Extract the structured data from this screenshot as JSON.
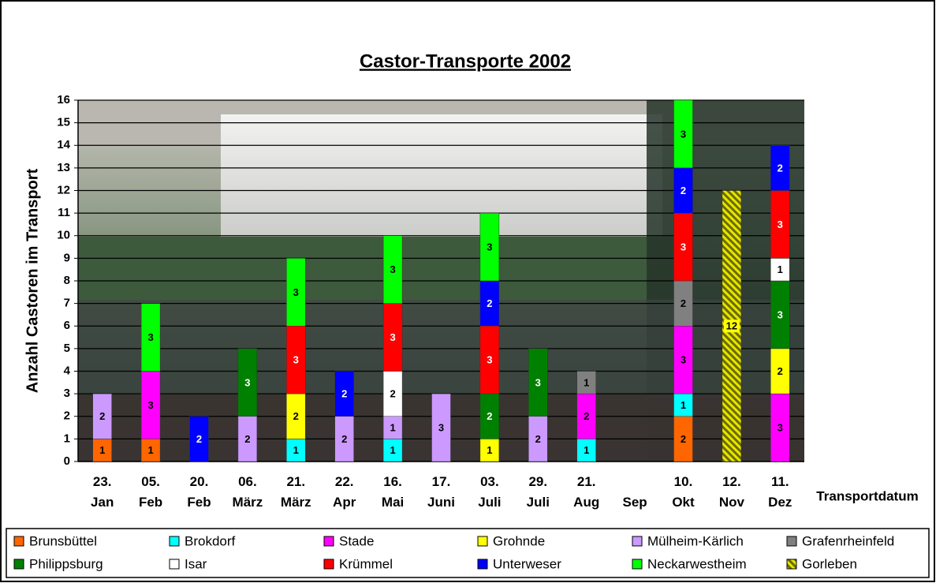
{
  "chart_data": {
    "type": "stacked_bar",
    "title": "Castor-Transporte 2002",
    "y_label": "Anzahl Castoren im Transport",
    "x_label": "Transportdatum",
    "categories": [
      "23. Jan",
      "05. Feb",
      "20. Feb",
      "06. März",
      "21. März",
      "22. Apr",
      "16. Mai",
      "17. Juni",
      "03. Juli",
      "29. Juli",
      "21. Aug",
      "Sep",
      "10. Okt",
      "12. Nov",
      "11. Dez"
    ],
    "ylim": [
      0,
      16
    ],
    "yticks": [
      0,
      1,
      2,
      3,
      4,
      5,
      6,
      7,
      8,
      9,
      10,
      11,
      12,
      13,
      14,
      15,
      16
    ],
    "grid": true,
    "legend": "bottom",
    "series": [
      {
        "name": "Brunsbüttel",
        "color": "#ff6600",
        "values": [
          1,
          1,
          null,
          null,
          null,
          null,
          null,
          null,
          null,
          null,
          null,
          null,
          2,
          null,
          null
        ]
      },
      {
        "name": "Brokdorf",
        "color": "#00ffff",
        "values": [
          null,
          null,
          null,
          null,
          1,
          null,
          1,
          null,
          null,
          null,
          1,
          null,
          1,
          null,
          null
        ]
      },
      {
        "name": "Stade",
        "color": "#ff00ff",
        "values": [
          null,
          3,
          null,
          null,
          null,
          null,
          null,
          null,
          null,
          null,
          2,
          null,
          3,
          null,
          3
        ]
      },
      {
        "name": "Grohnde",
        "color": "#ffff00",
        "values": [
          null,
          null,
          null,
          null,
          2,
          null,
          null,
          null,
          1,
          null,
          null,
          null,
          null,
          null,
          2
        ]
      },
      {
        "name": "Mülheim-Kärlich",
        "color": "#cc99ff",
        "values": [
          2,
          null,
          null,
          2,
          null,
          2,
          1,
          3,
          null,
          2,
          null,
          null,
          null,
          null,
          null
        ]
      },
      {
        "name": "Grafenrheinfeld",
        "color": "#808080",
        "values": [
          null,
          null,
          null,
          null,
          null,
          null,
          null,
          null,
          null,
          null,
          1,
          null,
          2,
          null,
          null
        ]
      },
      {
        "name": "Philippsburg",
        "color": "#008000",
        "values": [
          null,
          null,
          null,
          3,
          null,
          null,
          null,
          null,
          2,
          3,
          null,
          null,
          null,
          null,
          3
        ]
      },
      {
        "name": "Isar",
        "color": "#ffffff",
        "values": [
          null,
          null,
          null,
          null,
          null,
          null,
          2,
          null,
          null,
          null,
          null,
          null,
          null,
          null,
          1
        ]
      },
      {
        "name": "Krümmel",
        "color": "#ff0000",
        "values": [
          null,
          null,
          null,
          null,
          3,
          null,
          3,
          null,
          3,
          null,
          null,
          null,
          3,
          null,
          3
        ]
      },
      {
        "name": "Unterweser",
        "color": "#0000ff",
        "values": [
          null,
          null,
          2,
          null,
          null,
          2,
          null,
          null,
          2,
          null,
          null,
          null,
          2,
          null,
          2
        ]
      },
      {
        "name": "Neckarwestheim",
        "color": "#00ff00",
        "values": [
          null,
          3,
          null,
          null,
          3,
          null,
          3,
          null,
          3,
          null,
          null,
          null,
          3,
          null,
          null
        ]
      },
      {
        "name": "Gorleben",
        "color": "#b3b300",
        "pattern": "hatch",
        "values": [
          null,
          null,
          null,
          null,
          null,
          null,
          null,
          null,
          null,
          null,
          null,
          null,
          null,
          12,
          null
        ]
      }
    ]
  }
}
